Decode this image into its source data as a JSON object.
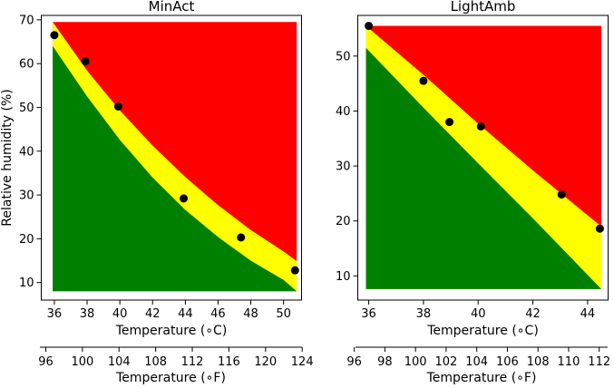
{
  "colors": {
    "red": "#ff0000",
    "yellow": "#ffff00",
    "green": "#008000",
    "point": "#000000"
  },
  "chart_data": [
    {
      "type": "scatter",
      "title": "MinAct",
      "xlabel": "Temperature (∘C)",
      "ylabel": "Relative humidity (%)",
      "secondary_xlabel": "Temperature (∘F)",
      "xlim": [
        35.2,
        51.1
      ],
      "ylim": [
        6.0,
        71.0
      ],
      "xticks": [
        36,
        38,
        40,
        42,
        44,
        46,
        48,
        50
      ],
      "yticks": [
        10,
        20,
        30,
        40,
        50,
        60,
        70
      ],
      "secondary_xlim": [
        95.36,
        123.98
      ],
      "secondary_xticks": [
        96,
        100,
        104,
        108,
        112,
        116,
        120,
        124
      ],
      "region_xrange": [
        35.9,
        50.8
      ],
      "region_yrange": [
        8.0,
        69.5
      ],
      "upper_curve": {
        "x": [
          35.9,
          38,
          40,
          42,
          44,
          46,
          48,
          50,
          50.8
        ],
        "y": [
          69.5,
          58.4,
          49.3,
          41.3,
          34.1,
          27.7,
          22.0,
          17.1,
          14.9
        ]
      },
      "lower_curve": {
        "x": [
          35.9,
          38,
          40,
          42,
          44,
          46,
          48,
          50,
          50.8
        ],
        "y": [
          64.0,
          52.5,
          42.6,
          34.0,
          26.6,
          20.4,
          15.0,
          10.6,
          8.0
        ]
      },
      "points": {
        "x": [
          36.0,
          37.9,
          39.9,
          43.9,
          47.4,
          50.7
        ],
        "y": [
          66.5,
          60.5,
          50.2,
          29.2,
          20.3,
          12.8
        ]
      }
    },
    {
      "type": "scatter",
      "title": "LightAmb",
      "xlabel": "Temperature (∘C)",
      "ylabel": "",
      "secondary_xlabel": "Temperature (∘F)",
      "xlim": [
        35.6,
        44.75
      ],
      "ylim": [
        5.6,
        57.4
      ],
      "xticks": [
        36,
        38,
        40,
        42,
        44
      ],
      "yticks": [
        10,
        20,
        30,
        40,
        50
      ],
      "secondary_xlim": [
        96.08,
        112.55
      ],
      "secondary_xticks": [
        96,
        98,
        100,
        102,
        104,
        106,
        108,
        110,
        112
      ],
      "region_xrange": [
        35.9,
        44.5
      ],
      "region_yrange": [
        7.6,
        55.5
      ],
      "upper_curve": {
        "x": [
          35.9,
          38,
          40,
          42,
          44.5
        ],
        "y": [
          55.5,
          46.6,
          37.7,
          29.2,
          19.0
        ]
      },
      "lower_curve": {
        "x": [
          35.9,
          38,
          40,
          42,
          44.5
        ],
        "y": [
          51.5,
          40.6,
          30.5,
          20.5,
          7.6
        ]
      },
      "points": {
        "x": [
          36.0,
          38.0,
          38.95,
          40.1,
          43.05,
          44.45
        ],
        "y": [
          55.5,
          45.5,
          38.0,
          37.2,
          24.8,
          18.6
        ]
      }
    }
  ]
}
